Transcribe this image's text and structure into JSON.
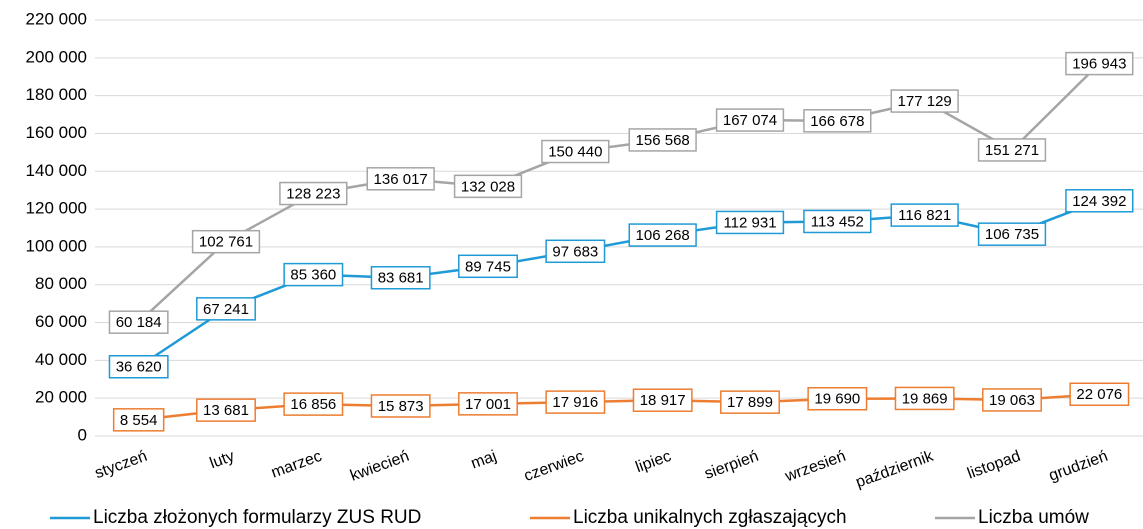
{
  "chart_data": {
    "type": "line",
    "categories": [
      "styczeń",
      "luty",
      "marzec",
      "kwiecień",
      "maj",
      "czerwiec",
      "lipiec",
      "sierpień",
      "wrzesień",
      "październik",
      "listopad",
      "grudzień"
    ],
    "ylim": [
      0,
      220000
    ],
    "yticks": [
      0,
      {
        "value": 20000,
        "label": "20 000"
      },
      {
        "value": 40000,
        "label": "40 000"
      },
      {
        "value": 60000,
        "label": "60 000"
      },
      {
        "value": 80000,
        "label": "80 000"
      },
      {
        "value": 100000,
        "label": "100 000"
      },
      {
        "value": 120000,
        "label": "120 000"
      },
      {
        "value": 140000,
        "label": "140 000"
      },
      {
        "value": 160000,
        "label": "160 000"
      },
      {
        "value": 180000,
        "label": "180 000"
      },
      {
        "value": 200000,
        "label": "200 000"
      },
      {
        "value": 220000,
        "label": "220 000"
      }
    ],
    "grid": true,
    "legend": "bottom",
    "series": [
      {
        "name": "Liczba złożonych formularzy ZUS RUD",
        "color": "#1f9ad6",
        "values": [
          36620,
          67241,
          85360,
          83681,
          89745,
          97683,
          106268,
          112931,
          113452,
          116821,
          106735,
          124392
        ],
        "value_labels": [
          "36 620",
          "67 241",
          "85 360",
          "83 681",
          "89 745",
          "97 683",
          "106 268",
          "112 931",
          "113 452",
          "116 821",
          "106 735",
          "124 392"
        ]
      },
      {
        "name": "Liczba unikalnych zgłaszających",
        "color": "#ed7d31",
        "values": [
          8554,
          13681,
          16856,
          15873,
          17001,
          17916,
          18917,
          17899,
          19690,
          19869,
          19063,
          22076
        ],
        "value_labels": [
          "8 554",
          "13 681",
          "16 856",
          "15 873",
          "17 001",
          "17 916",
          "18 917",
          "17 899",
          "19 690",
          "19 869",
          "19 063",
          "22 076"
        ]
      },
      {
        "name": "Liczba umów",
        "color": "#a5a5a5",
        "values": [
          60184,
          102761,
          128223,
          136017,
          132028,
          150440,
          156568,
          167074,
          166678,
          177129,
          151271,
          196943
        ],
        "value_labels": [
          "60 184",
          "102 761",
          "128 223",
          "136 017",
          "132 028",
          "150 440",
          "156 568",
          "167 074",
          "166 678",
          "177 129",
          "151 271",
          "196 943"
        ]
      }
    ]
  }
}
